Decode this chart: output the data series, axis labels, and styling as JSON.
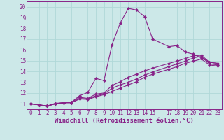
{
  "xlabel": "Windchill (Refroidissement éolien,°C)",
  "bg_color": "#cce8e8",
  "grid_color": "#b0d8d8",
  "line_color": "#882288",
  "xlim": [
    -0.5,
    23.5
  ],
  "ylim": [
    10.5,
    20.5
  ],
  "xticks": [
    0,
    1,
    2,
    3,
    4,
    5,
    6,
    7,
    8,
    9,
    10,
    11,
    12,
    13,
    14,
    15,
    17,
    18,
    19,
    20,
    21,
    22,
    23
  ],
  "yticks": [
    11,
    12,
    13,
    14,
    15,
    16,
    17,
    18,
    19,
    20
  ],
  "series": [
    {
      "x": [
        0,
        1,
        2,
        3,
        4,
        5,
        6,
        7,
        8,
        9,
        10,
        11,
        12,
        13,
        14,
        15,
        17,
        18,
        19,
        20,
        21,
        22,
        23
      ],
      "y": [
        11.0,
        10.9,
        10.8,
        11.05,
        11.1,
        11.15,
        11.75,
        12.05,
        13.35,
        13.15,
        16.5,
        18.5,
        19.85,
        19.7,
        19.1,
        17.0,
        16.3,
        16.4,
        15.8,
        15.6,
        15.25,
        14.85,
        14.75
      ]
    },
    {
      "x": [
        0,
        1,
        2,
        3,
        4,
        5,
        6,
        7,
        8,
        9,
        10,
        11,
        12,
        13,
        14,
        15,
        17,
        18,
        19,
        20,
        21,
        22,
        23
      ],
      "y": [
        11.0,
        10.9,
        10.8,
        11.0,
        11.1,
        11.15,
        11.6,
        11.5,
        11.9,
        12.0,
        12.7,
        13.05,
        13.45,
        13.75,
        14.05,
        14.3,
        14.75,
        14.95,
        15.2,
        15.45,
        15.5,
        14.85,
        14.75
      ]
    },
    {
      "x": [
        0,
        1,
        2,
        3,
        4,
        5,
        6,
        7,
        8,
        9,
        10,
        11,
        12,
        13,
        14,
        15,
        17,
        18,
        19,
        20,
        21,
        22,
        23
      ],
      "y": [
        11.0,
        10.9,
        10.8,
        11.0,
        11.1,
        11.1,
        11.5,
        11.45,
        11.75,
        11.9,
        12.45,
        12.75,
        13.0,
        13.3,
        13.65,
        13.95,
        14.45,
        14.7,
        14.95,
        15.25,
        15.4,
        14.7,
        14.6
      ]
    },
    {
      "x": [
        0,
        1,
        2,
        3,
        4,
        5,
        6,
        7,
        8,
        9,
        10,
        11,
        12,
        13,
        14,
        15,
        17,
        18,
        19,
        20,
        21,
        22,
        23
      ],
      "y": [
        11.0,
        10.9,
        10.8,
        11.0,
        11.1,
        11.1,
        11.45,
        11.4,
        11.65,
        11.85,
        12.15,
        12.45,
        12.75,
        13.05,
        13.45,
        13.75,
        14.2,
        14.45,
        14.75,
        14.95,
        15.15,
        14.6,
        14.5
      ]
    }
  ],
  "marker": "D",
  "marker_size": 2.0,
  "linewidth": 0.8,
  "font_size": 6.5,
  "tick_font_size": 5.5
}
